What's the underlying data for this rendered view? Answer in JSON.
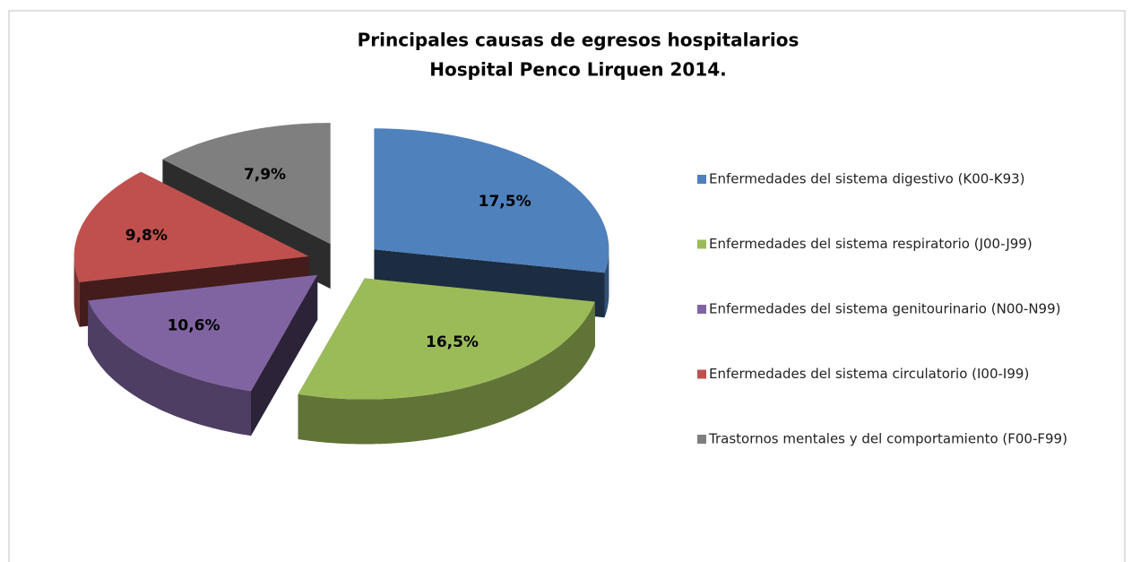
{
  "chart_data": {
    "type": "pie3d",
    "title": [
      "Principales causas de egresos hospitalarios",
      "Hospital Penco Lirquen 2014."
    ],
    "categories": [
      "Enfermedades del sistema digestivo (K00-K93)",
      "Enfermedades del sistema respiratorio (J00-J99)",
      "Enfermedades del sistema genitourinario (N00-N99)",
      "Enfermedades del sistema circulatorio (I00-I99)",
      "Trastornos mentales y del comportamiento (F00-F99)"
    ],
    "values": [
      17.5,
      16.5,
      10.6,
      9.8,
      7.9
    ],
    "value_labels": [
      "17,5%",
      "16,5%",
      "10,6%",
      "9,8%",
      "7,9%"
    ],
    "colors": [
      "#4f81bd",
      "#9bbb59",
      "#8064a2",
      "#c0504d",
      "#7f7f7f"
    ],
    "legend": "right"
  }
}
